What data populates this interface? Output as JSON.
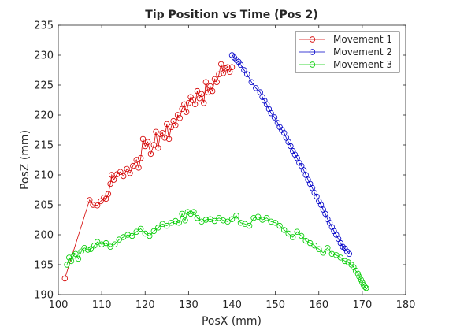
{
  "chart_data": {
    "type": "scatter",
    "title": "Tip Position vs Time (Pos 2)",
    "xlabel": "PosX (mm)",
    "ylabel": "PosZ (mm)",
    "xlim": [
      100,
      180
    ],
    "ylim": [
      190,
      235
    ],
    "xticks": [
      100,
      110,
      120,
      130,
      140,
      150,
      160,
      170,
      180
    ],
    "yticks": [
      190,
      195,
      200,
      205,
      210,
      215,
      220,
      225,
      230,
      235
    ],
    "grid": false,
    "legend_position": "top-right",
    "marker": "circle",
    "series": [
      {
        "name": "Movement 1",
        "color": "#d40000",
        "x": [
          101.5,
          107.2,
          108.0,
          109.0,
          109.8,
          110.5,
          111.0,
          111.5,
          112.0,
          112.3,
          112.8,
          113.5,
          114.3,
          115.0,
          115.8,
          116.5,
          117.2,
          118.0,
          118.5,
          119.0,
          119.5,
          120.0,
          120.6,
          121.3,
          122.0,
          122.5,
          123.0,
          123.5,
          124.0,
          124.5,
          125.0,
          125.5,
          126.0,
          126.5,
          127.0,
          127.5,
          128.0,
          128.5,
          129.0,
          129.5,
          130.0,
          130.5,
          131.0,
          131.5,
          132.0,
          132.5,
          133.0,
          133.5,
          134.0,
          134.5,
          135.0,
          135.5,
          136.0,
          136.5,
          137.0,
          137.5,
          138.0,
          138.5,
          139.0,
          139.5,
          140.0
        ],
        "y": [
          192.7,
          205.8,
          205.0,
          204.9,
          205.6,
          206.2,
          206.0,
          206.8,
          208.5,
          210.0,
          209.2,
          210.1,
          210.5,
          209.8,
          211.0,
          210.3,
          211.5,
          212.5,
          211.2,
          212.8,
          216.0,
          214.8,
          215.5,
          213.5,
          215.0,
          217.2,
          214.5,
          216.8,
          217.0,
          216.2,
          218.5,
          216.0,
          218.0,
          219.0,
          218.3,
          220.0,
          219.5,
          221.0,
          221.8,
          220.5,
          222.0,
          223.0,
          222.5,
          221.8,
          224.0,
          222.8,
          223.5,
          222.0,
          225.5,
          223.8,
          224.8,
          224.0,
          226.0,
          225.5,
          226.8,
          228.5,
          227.0,
          227.8,
          228.0,
          227.2,
          228.0
        ]
      },
      {
        "name": "Movement 2",
        "color": "#0000c8",
        "x": [
          140.0,
          140.5,
          141.0,
          141.5,
          142.0,
          142.8,
          143.5,
          144.5,
          145.5,
          146.5,
          147.0,
          147.5,
          148.0,
          148.5,
          149.0,
          149.8,
          150.5,
          151.0,
          151.5,
          152.0,
          152.5,
          153.0,
          153.5,
          154.0,
          154.5,
          155.0,
          155.5,
          156.0,
          156.5,
          157.0,
          157.5,
          158.0,
          158.5,
          159.0,
          159.5,
          160.0,
          160.5,
          161.0,
          161.5,
          162.0,
          162.5,
          163.0,
          163.5,
          164.0,
          164.5,
          165.0,
          165.5,
          166.0,
          166.5,
          167.0
        ],
        "y": [
          230.0,
          229.6,
          229.2,
          228.9,
          228.4,
          227.5,
          226.8,
          225.5,
          224.5,
          223.8,
          223.0,
          222.4,
          221.8,
          221.0,
          220.3,
          219.6,
          218.7,
          218.0,
          217.5,
          217.0,
          216.2,
          215.5,
          214.8,
          214.0,
          213.4,
          212.8,
          212.0,
          211.5,
          210.8,
          210.0,
          209.2,
          208.5,
          207.8,
          207.0,
          206.4,
          205.6,
          205.0,
          204.2,
          203.5,
          202.6,
          202.0,
          201.3,
          200.6,
          200.0,
          199.3,
          198.6,
          198.0,
          197.7,
          197.2,
          196.8
        ]
      },
      {
        "name": "Movement 3",
        "color": "#00cc00",
        "x": [
          102.0,
          102.5,
          103.0,
          103.5,
          104.0,
          104.6,
          105.3,
          106.0,
          106.8,
          107.5,
          108.3,
          109.0,
          110.0,
          111.0,
          112.0,
          113.0,
          114.0,
          115.0,
          116.0,
          117.0,
          118.0,
          119.0,
          120.0,
          121.0,
          122.0,
          123.0,
          124.0,
          125.0,
          126.0,
          127.0,
          127.8,
          128.5,
          129.2,
          129.8,
          130.5,
          131.2,
          132.0,
          133.0,
          134.0,
          135.0,
          136.0,
          137.0,
          138.0,
          139.0,
          140.0,
          141.0,
          142.0,
          143.0,
          144.0,
          145.0,
          146.0,
          147.0,
          148.0,
          149.0,
          150.0,
          151.0,
          152.0,
          153.0,
          154.0,
          155.0,
          156.0,
          157.0,
          158.0,
          159.0,
          160.0,
          161.0,
          162.0,
          163.0,
          164.0,
          165.0,
          166.0,
          166.8,
          167.5,
          168.0,
          168.5,
          169.0,
          169.3,
          169.7,
          170.0,
          170.3,
          170.6,
          170.9
        ],
        "y": [
          195.0,
          196.2,
          195.6,
          196.5,
          196.8,
          196.0,
          197.2,
          197.8,
          197.5,
          197.6,
          198.2,
          198.8,
          198.4,
          198.6,
          198.0,
          198.4,
          199.2,
          199.6,
          200.0,
          199.8,
          200.5,
          201.0,
          200.2,
          199.8,
          200.6,
          201.2,
          201.8,
          201.5,
          202.0,
          202.3,
          202.0,
          203.5,
          202.4,
          203.8,
          203.5,
          203.8,
          202.8,
          202.2,
          202.5,
          202.6,
          202.3,
          202.8,
          202.4,
          202.2,
          202.6,
          203.2,
          202.0,
          201.8,
          201.5,
          202.8,
          203.0,
          202.5,
          202.8,
          202.2,
          202.0,
          201.5,
          200.8,
          200.2,
          199.6,
          200.5,
          199.8,
          199.0,
          198.6,
          198.2,
          197.6,
          197.0,
          197.8,
          196.8,
          196.6,
          196.2,
          195.6,
          195.4,
          195.0,
          194.6,
          194.0,
          193.5,
          193.0,
          192.5,
          192.0,
          191.6,
          191.3,
          191.1
        ]
      }
    ]
  }
}
